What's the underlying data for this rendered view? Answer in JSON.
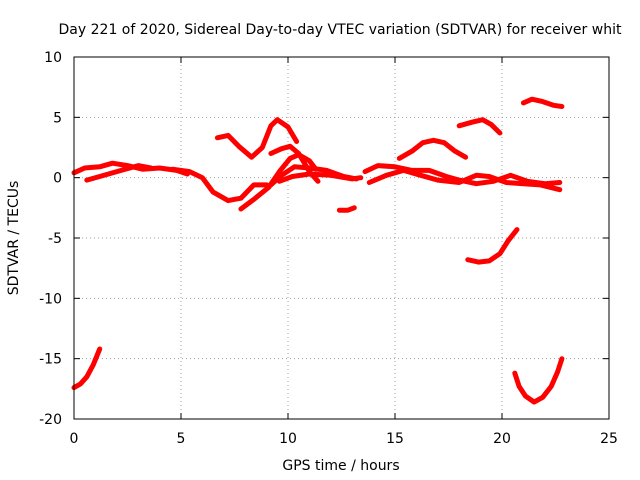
{
  "chart_data": {
    "type": "scatter",
    "title": "Day 221 of 2020, Sidereal Day-to-day VTEC variation (SDTVAR) for receiver whit",
    "xlabel": "GPS time / hours",
    "ylabel": "SDTVAR / TECUs",
    "xlim": [
      0,
      25
    ],
    "ylim": [
      -20,
      10
    ],
    "xticks": [
      "0",
      "5",
      "10",
      "15",
      "20",
      "25"
    ],
    "yticks": [
      "10",
      "5",
      "0",
      "-5",
      "-10",
      "-15",
      "-20"
    ],
    "grid": true,
    "marker": "+",
    "color": "#ff0000",
    "series": [
      {
        "name": "track-01",
        "points": [
          [
            0,
            -17.4
          ],
          [
            0.3,
            -17.1
          ],
          [
            0.6,
            -16.5
          ],
          [
            0.9,
            -15.5
          ],
          [
            1.2,
            -14.2
          ]
        ]
      },
      {
        "name": "track-02",
        "points": [
          [
            0,
            0.4
          ],
          [
            0.5,
            0.8
          ],
          [
            1.2,
            0.9
          ],
          [
            1.8,
            1.2
          ],
          [
            2.5,
            1.0
          ],
          [
            3.2,
            0.7
          ],
          [
            4,
            0.8
          ],
          [
            4.8,
            0.6
          ],
          [
            5.3,
            0.3
          ]
        ]
      },
      {
        "name": "track-03",
        "points": [
          [
            0.6,
            -0.2
          ],
          [
            1.2,
            0.1
          ],
          [
            2,
            0.5
          ],
          [
            3,
            1.0
          ],
          [
            3.6,
            0.8
          ]
        ]
      },
      {
        "name": "track-04",
        "points": [
          [
            4.6,
            0.7
          ],
          [
            5.4,
            0.5
          ],
          [
            6,
            0
          ],
          [
            6.5,
            -1.2
          ],
          [
            7.2,
            -1.9
          ],
          [
            7.8,
            -1.7
          ],
          [
            8.4,
            -0.6
          ],
          [
            9,
            -0.6
          ]
        ]
      },
      {
        "name": "track-05",
        "points": [
          [
            6.7,
            3.3
          ],
          [
            7.2,
            3.5
          ],
          [
            7.7,
            2.6
          ],
          [
            8.3,
            1.7
          ],
          [
            8.8,
            2.5
          ],
          [
            9.2,
            4.3
          ],
          [
            9.5,
            4.8
          ],
          [
            10,
            4.2
          ],
          [
            10.4,
            3.0
          ]
        ]
      },
      {
        "name": "track-06",
        "points": [
          [
            7.8,
            -2.6
          ],
          [
            8.4,
            -1.8
          ],
          [
            9.1,
            -0.8
          ],
          [
            9.6,
            0.5
          ],
          [
            10.1,
            1.6
          ],
          [
            10.5,
            1.9
          ],
          [
            11,
            1.4
          ],
          [
            11.3,
            0.7
          ]
        ]
      },
      {
        "name": "track-07",
        "points": [
          [
            9.2,
            -0.6
          ],
          [
            9.7,
            0.2
          ],
          [
            10.3,
            0.9
          ],
          [
            11,
            0.8
          ],
          [
            11.8,
            0.6
          ],
          [
            12.6,
            0.1
          ],
          [
            13.2,
            -0.1
          ]
        ]
      },
      {
        "name": "track-08",
        "points": [
          [
            9.6,
            -0.3
          ],
          [
            10.2,
            0.1
          ],
          [
            11,
            0.3
          ],
          [
            12,
            0.2
          ],
          [
            13,
            -0.1
          ],
          [
            13.4,
            0
          ]
        ]
      },
      {
        "name": "track-09",
        "points": [
          [
            9.2,
            2.0
          ],
          [
            9.7,
            2.4
          ],
          [
            10.1,
            2.6
          ],
          [
            10.5,
            2.0
          ],
          [
            11,
            0.5
          ],
          [
            11.4,
            -0.3
          ]
        ]
      },
      {
        "name": "track-10",
        "points": [
          [
            12.4,
            -2.7
          ],
          [
            12.8,
            -2.7
          ],
          [
            13.1,
            -2.5
          ]
        ]
      },
      {
        "name": "track-11",
        "points": [
          [
            13.6,
            0.5
          ],
          [
            14.2,
            1.0
          ],
          [
            15,
            0.9
          ],
          [
            15.8,
            0.6
          ],
          [
            16.6,
            0.6
          ],
          [
            17.4,
            0.1
          ],
          [
            18,
            -0.2
          ],
          [
            18.8,
            -0.5
          ],
          [
            19.6,
            -0.3
          ],
          [
            20.4,
            0.2
          ],
          [
            21.2,
            -0.3
          ],
          [
            22,
            -0.5
          ],
          [
            22.7,
            -0.4
          ]
        ]
      },
      {
        "name": "track-12",
        "points": [
          [
            13.8,
            -0.4
          ],
          [
            14.6,
            0.2
          ],
          [
            15.4,
            0.6
          ],
          [
            16.2,
            0.2
          ],
          [
            17,
            -0.2
          ],
          [
            18,
            -0.4
          ],
          [
            18.8,
            0.2
          ],
          [
            19.4,
            0.1
          ],
          [
            20.2,
            -0.4
          ],
          [
            21,
            -0.5
          ],
          [
            21.8,
            -0.6
          ],
          [
            22.7,
            -1.0
          ]
        ]
      },
      {
        "name": "track-13",
        "points": [
          [
            15.2,
            1.6
          ],
          [
            15.8,
            2.2
          ],
          [
            16.3,
            2.9
          ],
          [
            16.8,
            3.1
          ],
          [
            17.3,
            2.9
          ],
          [
            17.8,
            2.2
          ],
          [
            18.3,
            1.7
          ]
        ]
      },
      {
        "name": "track-14",
        "points": [
          [
            18.0,
            4.3
          ],
          [
            18.6,
            4.6
          ],
          [
            19.1,
            4.8
          ],
          [
            19.5,
            4.4
          ],
          [
            19.9,
            3.7
          ]
        ]
      },
      {
        "name": "track-15",
        "points": [
          [
            18.4,
            -6.8
          ],
          [
            18.9,
            -7.0
          ],
          [
            19.4,
            -6.9
          ],
          [
            19.9,
            -6.3
          ],
          [
            20.3,
            -5.2
          ],
          [
            20.7,
            -4.3
          ]
        ]
      },
      {
        "name": "track-16",
        "points": [
          [
            20.6,
            -16.2
          ],
          [
            20.8,
            -17.3
          ],
          [
            21.1,
            -18.1
          ],
          [
            21.5,
            -18.6
          ],
          [
            21.9,
            -18.2
          ],
          [
            22.3,
            -17.3
          ],
          [
            22.6,
            -16.1
          ],
          [
            22.8,
            -15.0
          ]
        ]
      },
      {
        "name": "track-17",
        "points": [
          [
            21.0,
            6.2
          ],
          [
            21.4,
            6.5
          ],
          [
            21.9,
            6.3
          ],
          [
            22.4,
            6.0
          ],
          [
            22.8,
            5.9
          ]
        ]
      }
    ]
  }
}
